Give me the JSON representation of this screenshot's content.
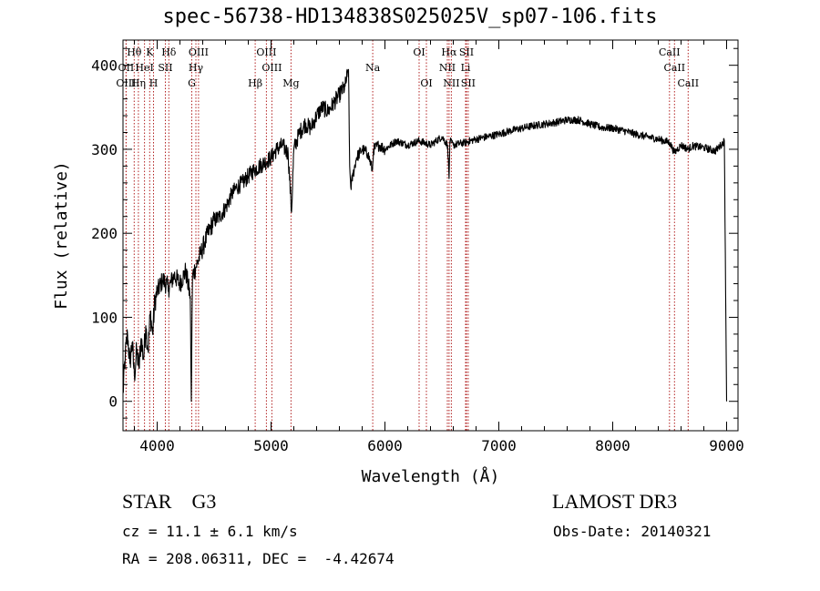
{
  "title": "spec-56738-HD134838S025025V_sp07-106.fits",
  "info": {
    "object_class": "STAR    G3",
    "survey": "LAMOST DR3",
    "cz": "cz = 11.1 ± 6.1 km/s",
    "obs_date": "Obs-Date: 20140321",
    "radec": "RA = 208.06311, DEC =  -4.42674"
  },
  "chart_data": {
    "type": "line",
    "title": "spec-56738-HD134838S025025V_sp07-106.fits",
    "xlabel": "Wavelength (Å)",
    "ylabel": "Flux (relative)",
    "xlim": [
      3700,
      9100
    ],
    "ylim": [
      -35,
      430
    ],
    "xticks": [
      4000,
      5000,
      6000,
      7000,
      8000,
      9000
    ],
    "yticks": [
      0,
      100,
      200,
      300,
      400
    ],
    "grid": false,
    "line_color": "#000000",
    "marker_color": "#b22222",
    "spectrum": {
      "x": [
        3700,
        3720,
        3740,
        3760,
        3780,
        3800,
        3820,
        3840,
        3860,
        3880,
        3900,
        3920,
        3940,
        3960,
        3980,
        4000,
        4050,
        4100,
        4150,
        4200,
        4250,
        4290,
        4300,
        4310,
        4340,
        4380,
        4420,
        4460,
        4500,
        4550,
        4600,
        4650,
        4700,
        4750,
        4800,
        4850,
        4900,
        4950,
        5000,
        5050,
        5100,
        5150,
        5180,
        5200,
        5250,
        5300,
        5350,
        5400,
        5450,
        5500,
        5550,
        5600,
        5650,
        5680,
        5690,
        5700,
        5720,
        5750,
        5800,
        5850,
        5890,
        5900,
        5950,
        6000,
        6100,
        6200,
        6300,
        6400,
        6500,
        6550,
        6563,
        6570,
        6600,
        6700,
        6800,
        6900,
        7000,
        7100,
        7200,
        7300,
        7400,
        7500,
        7600,
        7700,
        7800,
        7900,
        8000,
        8100,
        8200,
        8300,
        8400,
        8500,
        8542,
        8600,
        8662,
        8700,
        8800,
        8900,
        8950,
        8980,
        9000
      ],
      "flux": [
        10,
        55,
        80,
        45,
        70,
        30,
        60,
        40,
        75,
        50,
        90,
        60,
        105,
        80,
        120,
        130,
        145,
        135,
        150,
        140,
        155,
        125,
        0,
        150,
        160,
        175,
        190,
        205,
        215,
        220,
        230,
        245,
        255,
        260,
        268,
        275,
        280,
        285,
        290,
        300,
        305,
        295,
        225,
        300,
        320,
        330,
        325,
        340,
        350,
        345,
        355,
        365,
        375,
        395,
        280,
        255,
        270,
        290,
        300,
        295,
        275,
        300,
        305,
        300,
        310,
        305,
        310,
        305,
        315,
        305,
        265,
        310,
        305,
        308,
        312,
        315,
        318,
        322,
        325,
        328,
        330,
        332,
        335,
        335,
        330,
        326,
        325,
        322,
        318,
        315,
        312,
        308,
        296,
        305,
        300,
        304,
        302,
        298,
        305,
        310,
        0
      ]
    },
    "lines": [
      {
        "label": "Hθ",
        "wl": 3798,
        "row": 0
      },
      {
        "label": "K",
        "wl": 3934,
        "row": 0
      },
      {
        "label": "Hδ",
        "wl": 4102,
        "row": 0
      },
      {
        "label": "OIII",
        "wl": 4363,
        "row": 0
      },
      {
        "label": "OIII",
        "wl": 4959,
        "row": 0
      },
      {
        "label": "OI",
        "wl": 6300,
        "row": 0
      },
      {
        "label": "Hα",
        "wl": 6563,
        "row": 0
      },
      {
        "label": "SII",
        "wl": 6716,
        "row": 0
      },
      {
        "label": "CaII",
        "wl": 8498,
        "row": 0
      },
      {
        "label": "OII",
        "wl": 3727,
        "row": 1
      },
      {
        "label": "HeI",
        "wl": 3889,
        "row": 1
      },
      {
        "label": "SII",
        "wl": 4072,
        "row": 1
      },
      {
        "label": "Hγ",
        "wl": 4340,
        "row": 1
      },
      {
        "label": "OIII",
        "wl": 5007,
        "row": 1
      },
      {
        "label": "Na",
        "wl": 5893,
        "row": 1
      },
      {
        "label": "NII",
        "wl": 6548,
        "row": 1
      },
      {
        "label": "Li",
        "wl": 6708,
        "row": 1
      },
      {
        "label": "CaII",
        "wl": 8542,
        "row": 1
      },
      {
        "label": "OIII",
        "wl": 3727,
        "row": 2
      },
      {
        "label": "Hη",
        "wl": 3835,
        "row": 2
      },
      {
        "label": "H",
        "wl": 3968,
        "row": 2
      },
      {
        "label": "G",
        "wl": 4304,
        "row": 2
      },
      {
        "label": "Hβ",
        "wl": 4861,
        "row": 2
      },
      {
        "label": "Mg",
        "wl": 5175,
        "row": 2
      },
      {
        "label": "OI",
        "wl": 6364,
        "row": 2
      },
      {
        "label": "NII",
        "wl": 6583,
        "row": 2
      },
      {
        "label": "SII",
        "wl": 6731,
        "row": 2
      },
      {
        "label": "CaII",
        "wl": 8662,
        "row": 2
      }
    ]
  }
}
